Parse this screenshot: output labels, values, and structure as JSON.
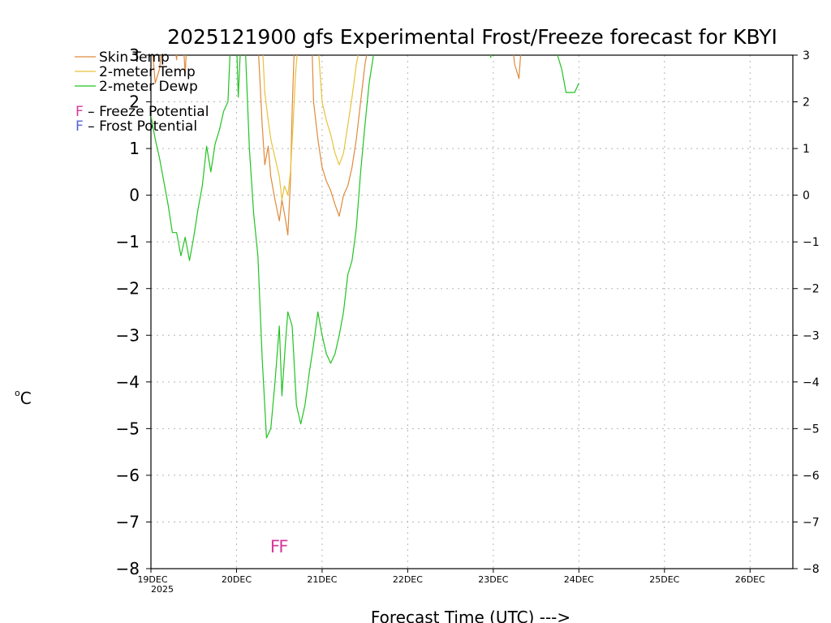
{
  "chart_data": {
    "type": "line",
    "title": "2025121900 gfs Experimental Frost/Freeze forecast for KBYI",
    "xlabel": "Forecast Time (UTC) --->",
    "ylabel": "°C",
    "ylabel_degree": "o",
    "ylabel_unit": "C",
    "ylim": [
      -8,
      3
    ],
    "xlim": [
      0,
      7.5
    ],
    "y_ticks": [
      -8,
      -7,
      -6,
      -5,
      -4,
      -3,
      -2,
      -1,
      0,
      1,
      2,
      3
    ],
    "x_ticks": [
      {
        "x": 0,
        "label": "19DEC",
        "sublabel": "2025"
      },
      {
        "x": 1,
        "label": "20DEC"
      },
      {
        "x": 2,
        "label": "21DEC"
      },
      {
        "x": 3,
        "label": "22DEC"
      },
      {
        "x": 4,
        "label": "23DEC"
      },
      {
        "x": 5,
        "label": "24DEC"
      },
      {
        "x": 6,
        "label": "25DEC"
      },
      {
        "x": 7,
        "label": "26DEC"
      }
    ],
    "grid": true,
    "series": [
      {
        "name": "Skin Temp",
        "color": "#e08a3c",
        "segments": [
          [
            [
              0.0,
              3.5
            ],
            [
              0.05,
              2.4
            ],
            [
              0.1,
              2.7
            ],
            [
              0.15,
              3.5
            ]
          ],
          [
            [
              0.28,
              3.3
            ],
            [
              0.3,
              2.9
            ],
            [
              0.32,
              3.3
            ]
          ],
          [
            [
              0.38,
              3.2
            ],
            [
              0.4,
              2.6
            ],
            [
              0.42,
              3.3
            ]
          ],
          [
            [
              1.25,
              3.3
            ],
            [
              1.27,
              2.6
            ],
            [
              1.3,
              1.5
            ],
            [
              1.33,
              0.65
            ],
            [
              1.37,
              1.05
            ],
            [
              1.4,
              0.4
            ],
            [
              1.45,
              -0.1
            ],
            [
              1.5,
              -0.55
            ],
            [
              1.53,
              -0.1
            ],
            [
              1.57,
              -0.5
            ],
            [
              1.6,
              -0.85
            ],
            [
              1.63,
              0.3
            ],
            [
              1.65,
              1.8
            ],
            [
              1.67,
              2.9
            ],
            [
              1.68,
              3.3
            ]
          ],
          [
            [
              1.88,
              3.3
            ],
            [
              1.9,
              2.0
            ],
            [
              1.95,
              1.2
            ],
            [
              2.0,
              0.6
            ],
            [
              2.05,
              0.3
            ],
            [
              2.1,
              0.1
            ],
            [
              2.15,
              -0.2
            ],
            [
              2.2,
              -0.45
            ],
            [
              2.25,
              0.0
            ],
            [
              2.3,
              0.2
            ],
            [
              2.35,
              0.6
            ],
            [
              2.4,
              1.2
            ],
            [
              2.45,
              2.0
            ],
            [
              2.5,
              2.8
            ],
            [
              2.55,
              3.3
            ]
          ],
          [
            [
              4.22,
              3.3
            ],
            [
              4.25,
              2.8
            ],
            [
              4.3,
              2.5
            ],
            [
              4.33,
              3.3
            ]
          ]
        ]
      },
      {
        "name": "2-meter Temp",
        "color": "#e8c23a",
        "segments": [
          [
            [
              1.3,
              3.3
            ],
            [
              1.33,
              2.2
            ],
            [
              1.37,
              1.6
            ],
            [
              1.4,
              1.2
            ],
            [
              1.45,
              0.8
            ],
            [
              1.5,
              0.4
            ],
            [
              1.53,
              -0.1
            ],
            [
              1.56,
              0.2
            ],
            [
              1.6,
              0.0
            ],
            [
              1.63,
              0.5
            ],
            [
              1.66,
              1.5
            ],
            [
              1.69,
              2.6
            ],
            [
              1.72,
              3.3
            ]
          ],
          [
            [
              1.95,
              3.3
            ],
            [
              2.0,
              2.0
            ],
            [
              2.05,
              1.6
            ],
            [
              2.1,
              1.3
            ],
            [
              2.15,
              0.9
            ],
            [
              2.2,
              0.65
            ],
            [
              2.25,
              0.9
            ],
            [
              2.3,
              1.5
            ],
            [
              2.35,
              2.1
            ],
            [
              2.4,
              2.8
            ],
            [
              2.45,
              3.3
            ]
          ]
        ]
      },
      {
        "name": "2-meter Dewp",
        "color": "#22c322",
        "segments": [
          [
            [
              0.0,
              1.7
            ],
            [
              0.05,
              1.2
            ],
            [
              0.1,
              0.8
            ],
            [
              0.15,
              0.3
            ],
            [
              0.2,
              -0.2
            ],
            [
              0.25,
              -0.8
            ],
            [
              0.3,
              -0.8
            ],
            [
              0.35,
              -1.3
            ],
            [
              0.4,
              -0.9
            ],
            [
              0.45,
              -1.4
            ],
            [
              0.5,
              -0.9
            ],
            [
              0.55,
              -0.3
            ],
            [
              0.6,
              0.2
            ],
            [
              0.65,
              1.05
            ],
            [
              0.7,
              0.5
            ],
            [
              0.75,
              1.1
            ],
            [
              0.8,
              1.4
            ],
            [
              0.85,
              1.8
            ],
            [
              0.9,
              2.0
            ],
            [
              0.93,
              3.3
            ]
          ],
          [
            [
              1.0,
              3.3
            ],
            [
              1.02,
              2.1
            ],
            [
              1.05,
              3.3
            ]
          ],
          [
            [
              1.1,
              3.3
            ],
            [
              1.15,
              1.0
            ],
            [
              1.2,
              -0.4
            ],
            [
              1.25,
              -1.3
            ],
            [
              1.3,
              -3.5
            ],
            [
              1.35,
              -5.2
            ],
            [
              1.4,
              -5.0
            ],
            [
              1.45,
              -4.0
            ],
            [
              1.5,
              -2.8
            ],
            [
              1.53,
              -4.3
            ],
            [
              1.57,
              -3.2
            ],
            [
              1.6,
              -2.5
            ],
            [
              1.65,
              -2.8
            ],
            [
              1.7,
              -4.5
            ],
            [
              1.75,
              -4.9
            ],
            [
              1.8,
              -4.5
            ],
            [
              1.85,
              -3.8
            ],
            [
              1.9,
              -3.2
            ],
            [
              1.95,
              -2.5
            ],
            [
              2.0,
              -3.0
            ],
            [
              2.05,
              -3.4
            ],
            [
              2.1,
              -3.6
            ],
            [
              2.15,
              -3.4
            ],
            [
              2.2,
              -3.0
            ],
            [
              2.25,
              -2.5
            ],
            [
              2.3,
              -1.7
            ],
            [
              2.35,
              -1.4
            ],
            [
              2.4,
              -0.7
            ],
            [
              2.45,
              0.5
            ],
            [
              2.5,
              1.5
            ],
            [
              2.55,
              2.4
            ],
            [
              2.6,
              3.0
            ],
            [
              2.63,
              3.3
            ]
          ],
          [
            [
              3.95,
              3.3
            ],
            [
              3.97,
              2.95
            ],
            [
              4.0,
              3.3
            ]
          ],
          [
            [
              4.7,
              3.3
            ],
            [
              4.75,
              3.0
            ],
            [
              4.8,
              2.7
            ],
            [
              4.85,
              2.2
            ],
            [
              4.9,
              2.2
            ],
            [
              4.95,
              2.2
            ],
            [
              5.0,
              2.4
            ]
          ]
        ]
      }
    ],
    "legend": {
      "entries": [
        "Skin Temp",
        "2-meter Temp",
        "2-meter Dewp"
      ],
      "freeze_letter": "F",
      "freeze_text": " – Freeze Potential",
      "frost_letter": "F",
      "frost_text": " – Frost Potential",
      "placement": "top-left"
    },
    "markers": [
      {
        "x": 1.45,
        "y": -7.5,
        "text": "F",
        "kind": "freeze"
      },
      {
        "x": 1.55,
        "y": -7.5,
        "text": "F",
        "kind": "freeze"
      }
    ],
    "colors": {
      "freeze": "#d6399e",
      "frost": "#5566d6",
      "grid": "#b5b5b5",
      "axis": "#000000"
    }
  }
}
